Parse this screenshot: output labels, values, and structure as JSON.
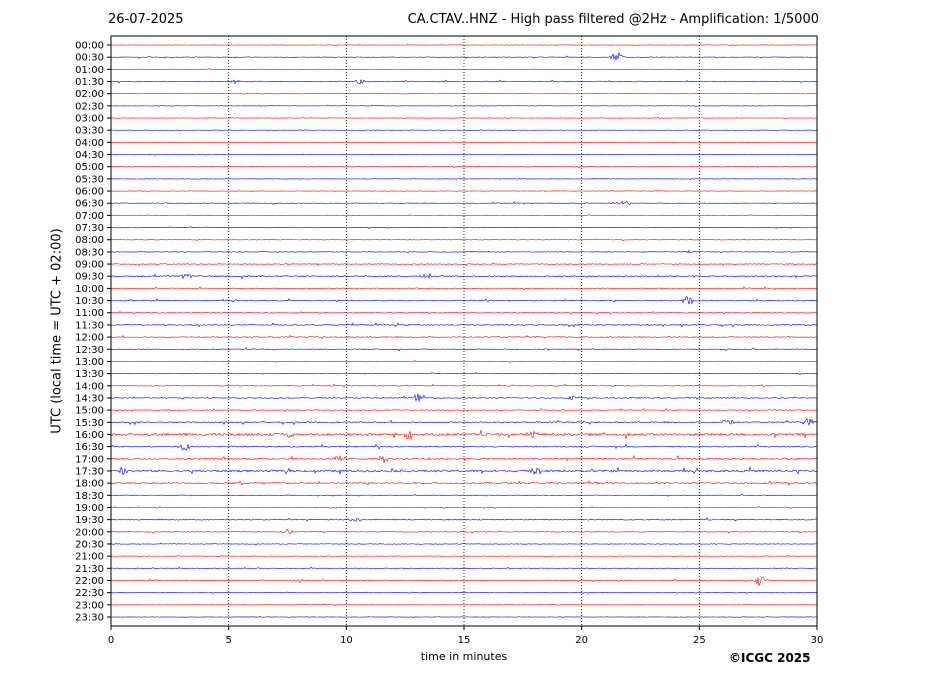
{
  "header": {
    "date": "26-07-2025",
    "title": "CA.CTAV..HNZ - High pass filtered @2Hz - Amplification: 1/5000"
  },
  "footer": {
    "credit": "©ICGC 2025"
  },
  "chart_data": {
    "type": "line",
    "xlabel": "time in minutes",
    "ylabel": "UTC (local time = UTC + 02:00)",
    "xlim": [
      0,
      30
    ],
    "xticks": [
      0,
      5,
      10,
      15,
      20,
      25,
      30
    ],
    "grid": "vertical dotted at each x tick",
    "trace_colors": [
      "#ff0000",
      "#0000ff"
    ],
    "rows": [
      "00:00",
      "00:30",
      "01:00",
      "01:30",
      "02:00",
      "02:30",
      "03:00",
      "03:30",
      "04:00",
      "04:30",
      "05:00",
      "05:30",
      "06:00",
      "06:30",
      "07:00",
      "07:30",
      "08:00",
      "08:30",
      "09:00",
      "09:30",
      "10:00",
      "10:30",
      "11:00",
      "11:30",
      "12:00",
      "12:30",
      "13:00",
      "13:30",
      "14:00",
      "14:30",
      "15:00",
      "15:30",
      "16:00",
      "16:30",
      "17:00",
      "17:30",
      "18:00",
      "18:30",
      "19:00",
      "19:30",
      "20:00",
      "20:30",
      "21:00",
      "21:30",
      "22:00",
      "22:30",
      "23:00",
      "23:30"
    ],
    "row_noise": [
      0.2,
      0.3,
      0.2,
      0.4,
      0.2,
      0.2,
      0.2,
      0.2,
      0.2,
      0.2,
      0.3,
      0.2,
      0.2,
      0.3,
      0.2,
      0.3,
      0.3,
      0.3,
      0.4,
      0.6,
      0.4,
      0.5,
      0.4,
      0.5,
      0.5,
      0.4,
      0.3,
      0.3,
      0.4,
      0.5,
      0.4,
      0.6,
      1.2,
      0.6,
      0.8,
      1.0,
      0.7,
      0.3,
      0.3,
      0.5,
      0.4,
      0.3,
      0.2,
      0.3,
      0.4,
      0.2,
      0.2,
      0.2
    ],
    "events": [
      {
        "row": "00:30",
        "minute": 21.5,
        "amplitude": 6
      },
      {
        "row": "01:30",
        "minute": 5.2,
        "amplitude": 3
      },
      {
        "row": "01:30",
        "minute": 10.6,
        "amplitude": 3
      },
      {
        "row": "06:30",
        "minute": 21.8,
        "amplitude": 4
      },
      {
        "row": "08:30",
        "minute": 24.6,
        "amplitude": 2
      },
      {
        "row": "09:30",
        "minute": 3.2,
        "amplitude": 3
      },
      {
        "row": "09:30",
        "minute": 13.4,
        "amplitude": 4
      },
      {
        "row": "10:30",
        "minute": 24.5,
        "amplitude": 7
      },
      {
        "row": "14:30",
        "minute": 13.1,
        "amplitude": 5
      },
      {
        "row": "14:30",
        "minute": 19.7,
        "amplitude": 3
      },
      {
        "row": "15:30",
        "minute": 26.2,
        "amplitude": 4
      },
      {
        "row": "15:30",
        "minute": 29.6,
        "amplitude": 5
      },
      {
        "row": "16:00",
        "minute": 12.7,
        "amplitude": 6
      },
      {
        "row": "16:00",
        "minute": 7.6,
        "amplitude": 4
      },
      {
        "row": "16:00",
        "minute": 17.9,
        "amplitude": 4
      },
      {
        "row": "16:30",
        "minute": 3.1,
        "amplitude": 4
      },
      {
        "row": "17:00",
        "minute": 9.7,
        "amplitude": 5
      },
      {
        "row": "17:00",
        "minute": 11.6,
        "amplitude": 5
      },
      {
        "row": "17:30",
        "minute": 18.1,
        "amplitude": 6
      },
      {
        "row": "17:30",
        "minute": 0.5,
        "amplitude": 4
      },
      {
        "row": "19:30",
        "minute": 10.4,
        "amplitude": 3
      },
      {
        "row": "20:00",
        "minute": 7.5,
        "amplitude": 3
      },
      {
        "row": "22:00",
        "minute": 27.6,
        "amplitude": 7
      },
      {
        "row": "22:00",
        "minute": 8.0,
        "amplitude": 2
      }
    ]
  }
}
